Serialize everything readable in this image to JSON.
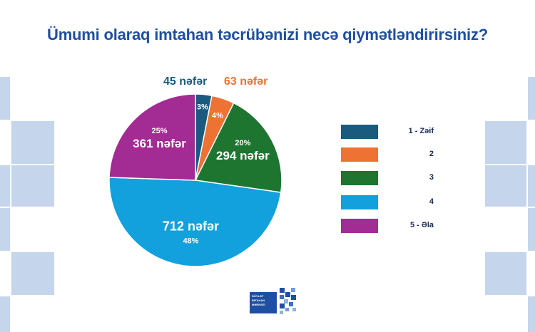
{
  "title": "Ümumi olaraq imtahan təcrübənizi necə qiymətləndirirsiniz?",
  "chart_data": {
    "type": "pie",
    "title": "Ümumi olaraq imtahan təcrübənizi necə qiymətləndirirsiniz?",
    "slices": [
      {
        "legend": "1 - Zəif",
        "percent_label": "3%",
        "count_label": "45 nəfər",
        "value": 45,
        "color": "#1a5a7e"
      },
      {
        "legend": "2",
        "percent_label": "4%",
        "count_label": "63 nəfər",
        "value": 63,
        "color": "#ee7232"
      },
      {
        "legend": "3",
        "percent_label": "20%",
        "count_label": "294 nəfər",
        "value": 294,
        "color": "#1e7530"
      },
      {
        "legend": "4",
        "percent_label": "48%",
        "count_label": "712 nəfər",
        "value": 712,
        "color": "#12a1dc"
      },
      {
        "legend": "5 - Əla",
        "percent_label": "25%",
        "count_label": "361 nəfər",
        "value": 361,
        "color": "#a32b94"
      }
    ],
    "legend_position": "right"
  },
  "logo": {
    "lines": [
      "DÖVLƏT",
      "İMTAHAN",
      "MƏRKƏZİ"
    ]
  }
}
